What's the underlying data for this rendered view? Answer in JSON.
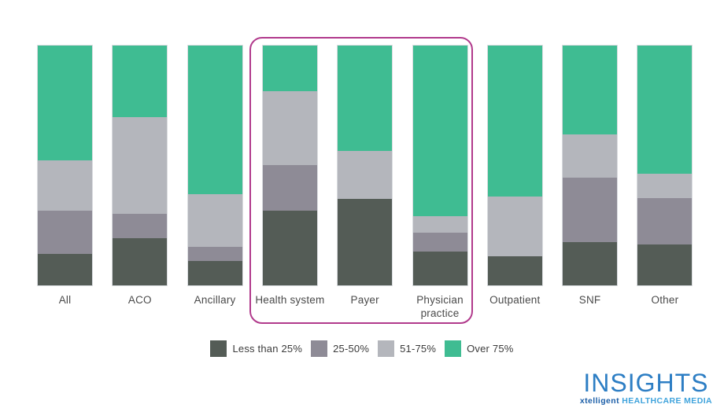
{
  "chart_data": {
    "type": "bar",
    "stacked": true,
    "title": "",
    "xlabel": "",
    "ylabel": "",
    "unit": "%",
    "ylim": [
      0,
      100
    ],
    "grid": false,
    "legend_position": "bottom",
    "categories": [
      "All",
      "ACO",
      "Ancillary",
      "Health system",
      "Payer",
      "Physician practice",
      "Outpatient",
      "SNF",
      "Other"
    ],
    "series": [
      {
        "key": "less-than-25",
        "name": "Less than 25%",
        "color": "#545c56",
        "values": [
          13,
          20,
          10,
          31,
          36,
          14,
          12,
          18,
          17
        ]
      },
      {
        "key": "25-50",
        "name": "25-50%",
        "color": "#8e8b96",
        "values": [
          18,
          10,
          6,
          19,
          0,
          8,
          0,
          27,
          19
        ]
      },
      {
        "key": "51-75",
        "name": "51-75%",
        "color": "#b4b6bc",
        "values": [
          21,
          41,
          22,
          31,
          20,
          7,
          25,
          18,
          10
        ]
      },
      {
        "key": "over-75",
        "name": "Over 75%",
        "color": "#3fbc92",
        "values": [
          48,
          30,
          62,
          19,
          44,
          71,
          63,
          37,
          53
        ]
      }
    ]
  },
  "highlight": {
    "color": "#b13a8c",
    "categories": [
      "Health system",
      "Payer",
      "Physician practice"
    ]
  },
  "logo": {
    "wordmark": "INSIGHTS",
    "tagline_brand": "xtelligent",
    "tagline_rest": "HEALTHCARE MEDIA"
  }
}
